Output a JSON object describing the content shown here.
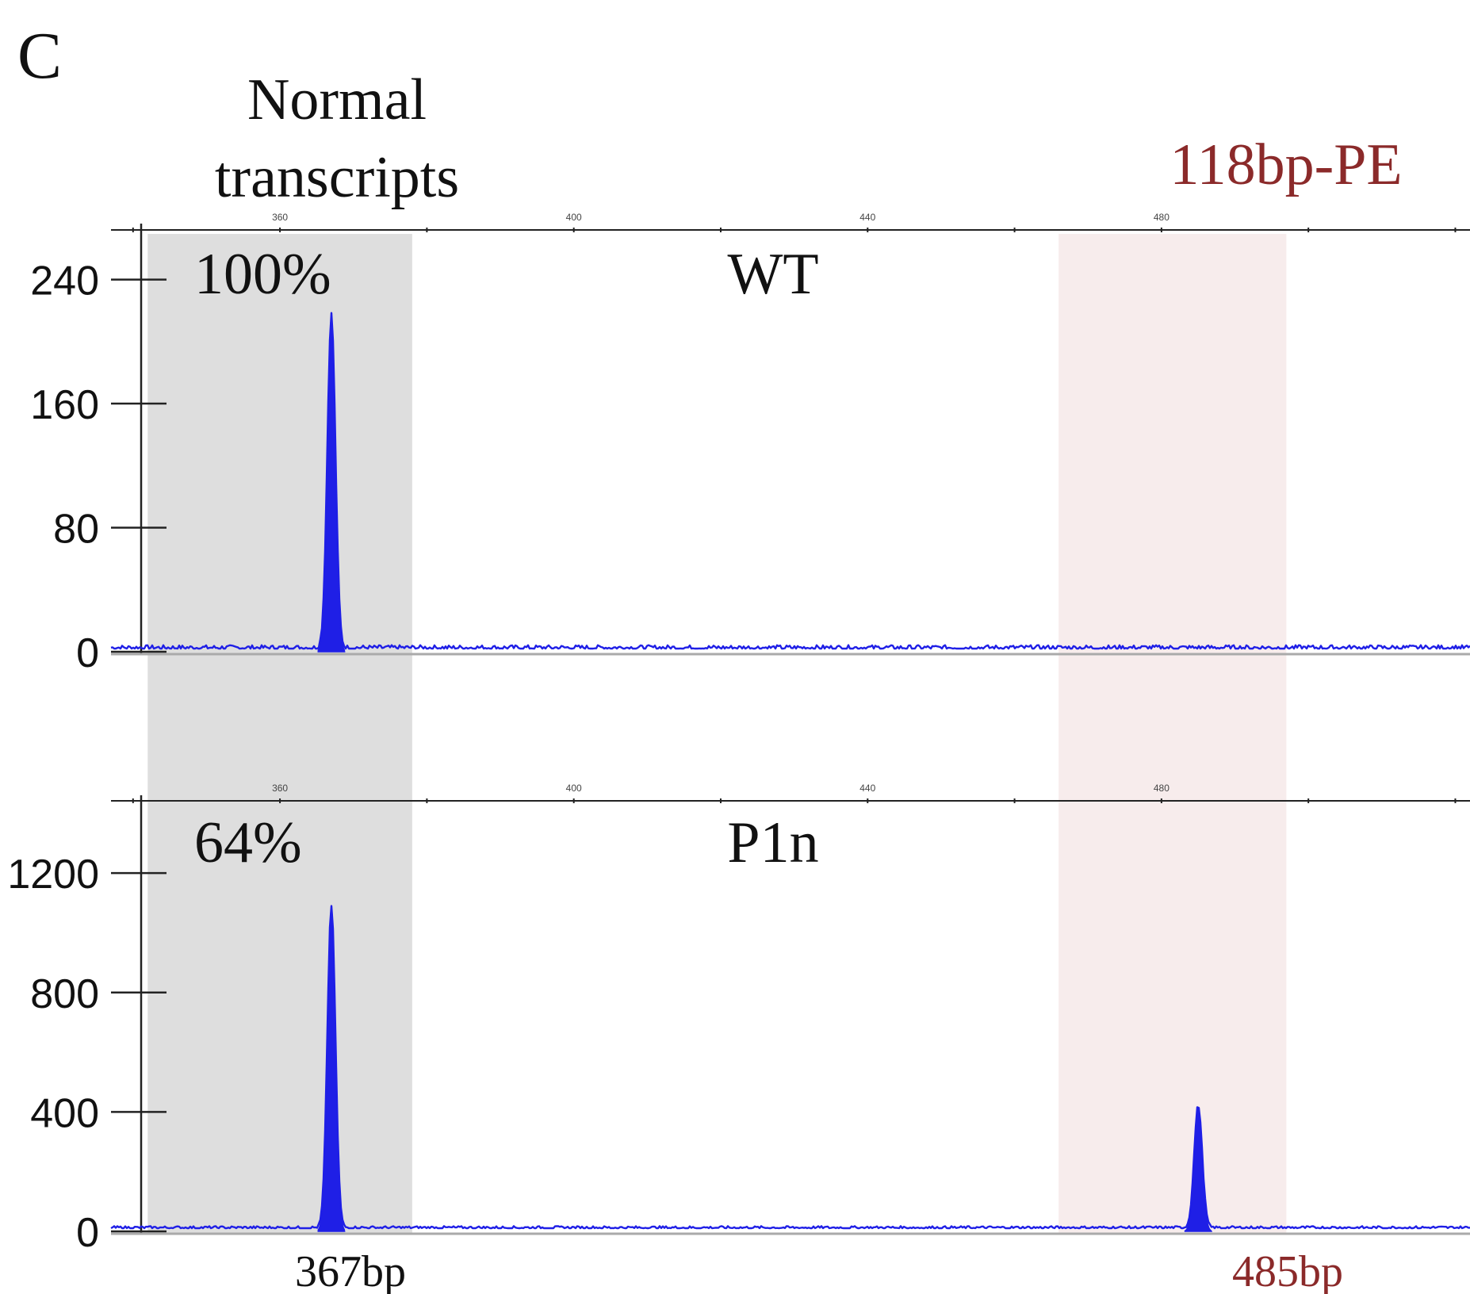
{
  "figure": {
    "panel_label": "C",
    "region_normal_label_line1": "Normal",
    "region_normal_label_line2": "transcripts",
    "region_pe_label": "118bp-PE",
    "bottom_label_normal": "367bp",
    "bottom_label_pe": "485bp",
    "colors": {
      "trace": "#1f1fe6",
      "normal_band": "#dedede",
      "pe_band": "#f7ecec",
      "pe_text": "#8b2a2a",
      "axis": "#222222"
    }
  },
  "chart_data": [
    {
      "type": "line",
      "sample": "WT",
      "percent_label": "100%",
      "xlabel": "",
      "ylabel": "",
      "x_ticks": [
        360,
        400,
        440,
        480
      ],
      "y_ticks": [
        0,
        80,
        160,
        240
      ],
      "xlim": [
        337,
        522
      ],
      "ylim": [
        0,
        272
      ],
      "shaded_regions": [
        {
          "name": "Normal transcripts",
          "x": [
            342,
            378
          ]
        },
        {
          "name": "118bp-PE",
          "x": [
            466,
            497
          ]
        }
      ],
      "peaks": [
        {
          "x": 367,
          "y": 215
        }
      ],
      "series": [
        {
          "values_description_omitted": true
        }
      ]
    },
    {
      "type": "line",
      "sample": "P1n",
      "percent_label": "64%",
      "xlabel": "",
      "ylabel": "",
      "x_ticks": [
        360,
        400,
        440,
        480
      ],
      "y_ticks": [
        0,
        400,
        800,
        1200
      ],
      "xlim": [
        337,
        522
      ],
      "ylim": [
        0,
        1450
      ],
      "shaded_regions": [
        {
          "name": "Normal transcripts",
          "x": [
            342,
            378
          ]
        },
        {
          "name": "118bp-PE",
          "x": [
            466,
            497
          ]
        }
      ],
      "peaks": [
        {
          "x": 367,
          "y": 1080
        },
        {
          "x": 485,
          "y": 410
        }
      ]
    }
  ]
}
